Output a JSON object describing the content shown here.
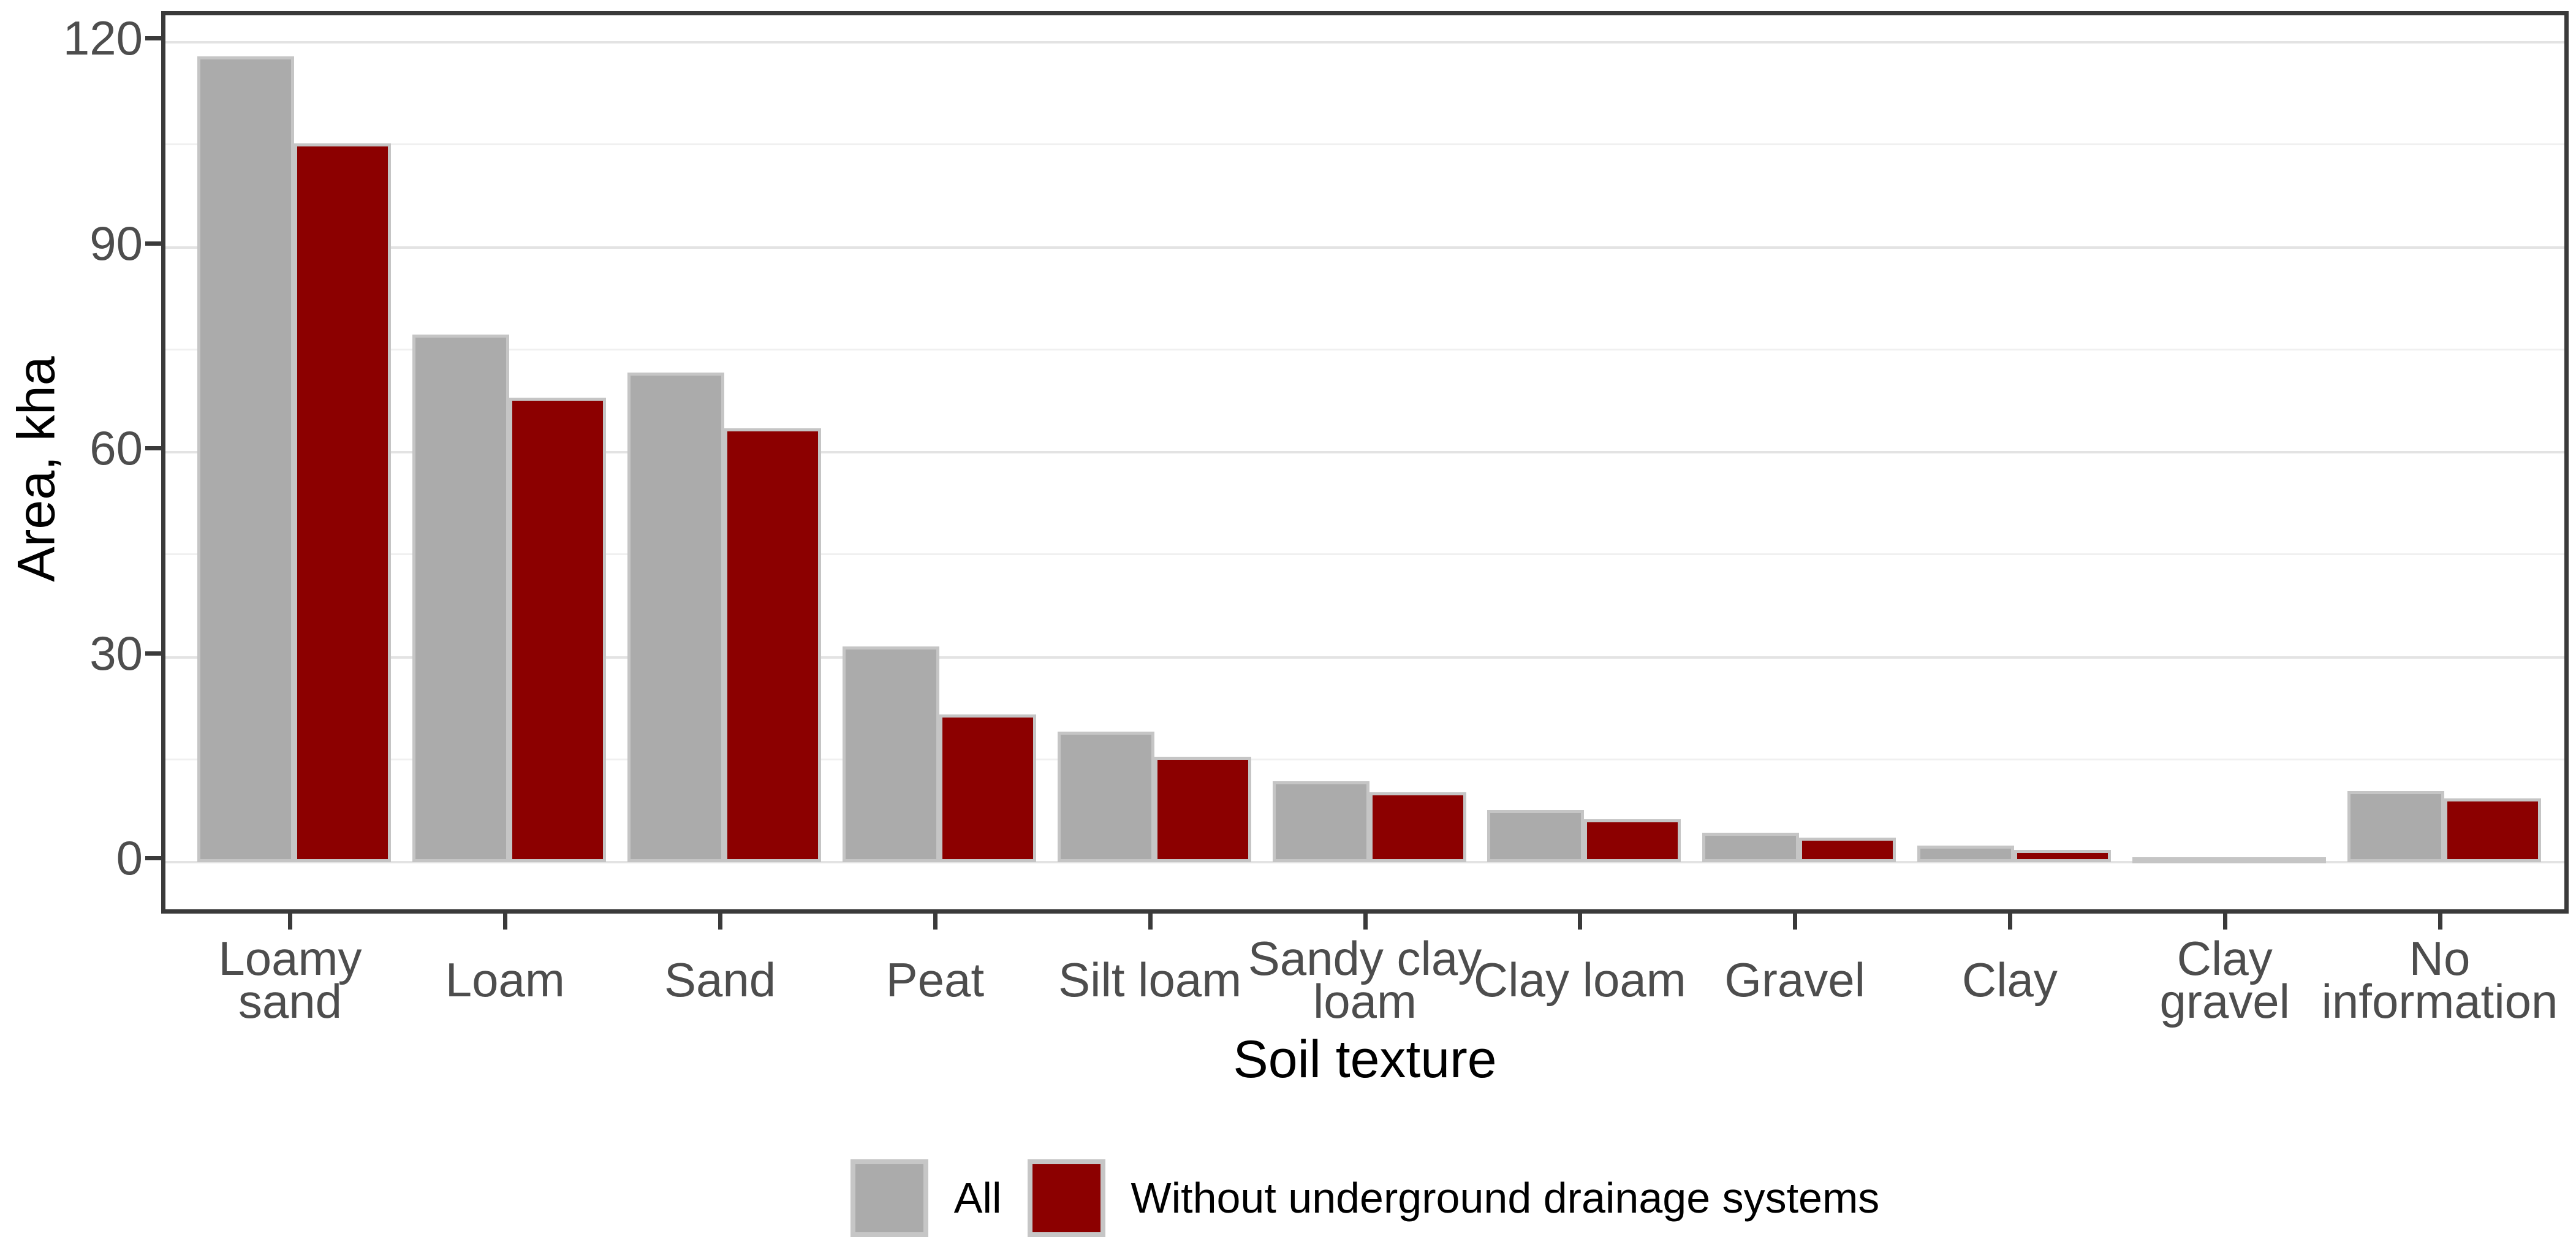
{
  "chart_data": {
    "type": "bar",
    "title": "",
    "xlabel": "Soil texture",
    "ylabel": "Area, kha",
    "categories": [
      "Loamy sand",
      "Loam",
      "Sand",
      "Peat",
      "Silt loam",
      "Sandy clay\nloam",
      "Clay loam",
      "Gravel",
      "Clay",
      "Clay\ngravel",
      "No\ninformation"
    ],
    "series": [
      {
        "name": "All",
        "color": "#ababab",
        "values": [
          117.9,
          77.2,
          71.7,
          31.6,
          19.1,
          11.8,
          7.6,
          4.3,
          2.4,
          0.4,
          10.4
        ]
      },
      {
        "name": "Without underground drainage systems",
        "color": "#8c0000",
        "values": [
          105.2,
          68.0,
          63.5,
          21.6,
          15.4,
          10.2,
          6.3,
          3.6,
          1.8,
          0.2,
          9.3
        ]
      }
    ],
    "yticks": [
      0,
      30,
      60,
      90,
      120
    ],
    "yminor": [
      15,
      45,
      75,
      105
    ],
    "ylim": [
      0,
      120
    ],
    "grid": "on",
    "legend_position": "bottom",
    "bar_border_color": "#c5c5c5",
    "panel_border_color": "#3a3a3a",
    "axis_text_color": "#4d4d4d"
  }
}
